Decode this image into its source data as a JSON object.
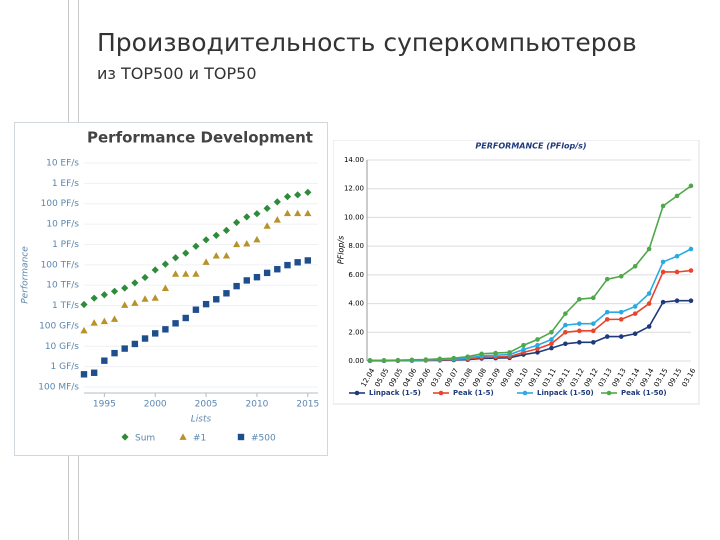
{
  "header": {
    "title": "Производительность суперкомпьютеров",
    "subtitle": "из TOP500 и TOP50"
  },
  "chart_data": [
    {
      "type": "scatter",
      "title": "Performance Development",
      "x_label": "Lists",
      "y_label": "Performance",
      "log_y": true,
      "grid": true,
      "x": [
        1993,
        1994,
        1995,
        1996,
        1997,
        1998,
        1999,
        2000,
        2001,
        2002,
        2003,
        2004,
        2005,
        2006,
        2007,
        2008,
        2009,
        2010,
        2011,
        2012,
        2013,
        2014,
        2015
      ],
      "xlim": [
        1993,
        2016
      ],
      "xticks": [
        1995,
        2000,
        2005,
        2010,
        2015
      ],
      "ylim": [
        100000000,
        10000000000000000000
      ],
      "yticks": [
        {
          "value": 100000000,
          "label": "100 MF/s"
        },
        {
          "value": 1000000000,
          "label": "1 GF/s"
        },
        {
          "value": 10000000000,
          "label": "10 GF/s"
        },
        {
          "value": 100000000000,
          "label": "100 GF/s"
        },
        {
          "value": 1000000000000,
          "label": "1 TF/s"
        },
        {
          "value": 10000000000000,
          "label": "10 TF/s"
        },
        {
          "value": 100000000000000,
          "label": "100 TF/s"
        },
        {
          "value": 1000000000000000,
          "label": "1 PF/s"
        },
        {
          "value": 10000000000000000,
          "label": "10 PF/s"
        },
        {
          "value": 100000000000000000,
          "label": "100 PF/s"
        },
        {
          "value": 1000000000000000000,
          "label": "1 EF/s"
        },
        {
          "value": 10000000000000000000,
          "label": "10 EF/s"
        }
      ],
      "series": [
        {
          "name": "Sum",
          "color": "#2e8b3a",
          "marker": "diamond",
          "values": [
            1130000000000,
            2300000000000,
            3400000000000,
            5000000000000,
            7200000000000,
            13000000000000,
            24000000000000,
            56000000000000,
            108000000000000,
            222000000000000,
            375000000000000,
            813000000000000,
            1690000000000000,
            2790000000000000,
            4900000000000000,
            12000000000000000,
            22600000000000000,
            32400000000000000,
            58900000000000000,
            123000000000000000,
            223000000000000000,
            274000000000000000,
            363000000000000000
          ]
        },
        {
          "name": "#1",
          "color": "#b8922a",
          "marker": "triangle",
          "values": [
            59700000000,
            143000000000,
            170000000000,
            220000000000,
            1070000000000,
            1340000000000,
            2120000000000,
            2380000000000,
            7200000000000,
            35900000000000,
            35900000000000,
            35900000000000,
            137000000000000,
            281000000000000,
            281000000000000,
            1030000000000000,
            1100000000000000,
            1760000000000000,
            8160000000000000,
            16300000000000000,
            33900000000000000,
            33900000000000000,
            33900000000000000
          ]
        },
        {
          "name": "#500",
          "color": "#1f4e8c",
          "marker": "square",
          "values": [
            420000000,
            500000000,
            1960000000,
            4600000000,
            7700000000,
            13000000000,
            24000000000,
            43000000000,
            68000000000,
            134000000000,
            245000000000,
            624000000000,
            1170000000000,
            2030000000000,
            4000000000000,
            9000000000000,
            17100000000000,
            24700000000000,
            40200000000000,
            60800000000000,
            96600000000000,
            133000000000000,
            164000000000000
          ]
        }
      ]
    },
    {
      "type": "line",
      "title": "PERFORMANCE (PFlop/s)",
      "y_label": "PFlop/s",
      "grid": true,
      "categories": [
        "12.04",
        "05.05",
        "09.05",
        "04.06",
        "09.06",
        "03.07",
        "09.07",
        "03.08",
        "09.08",
        "03.09",
        "09.09",
        "03.10",
        "09.10",
        "03.11",
        "09.11",
        "03.12",
        "09.12",
        "03.13",
        "09.13",
        "03.14",
        "09.14",
        "03.15",
        "09.15",
        "03.16"
      ],
      "ylim": [
        0,
        14
      ],
      "yticks": [
        {
          "value": 0,
          "label": "0.00"
        },
        {
          "value": 2,
          "label": "2.00"
        },
        {
          "value": 4,
          "label": "4.00"
        },
        {
          "value": 6,
          "label": "6.00"
        },
        {
          "value": 8,
          "label": "8.00"
        },
        {
          "value": 10,
          "label": "10.00"
        },
        {
          "value": 12,
          "label": "12.00"
        },
        {
          "value": 14,
          "label": "14.00"
        }
      ],
      "series": [
        {
          "name": "Linpack (1-5)",
          "color": "#1f3a7a",
          "values": [
            0.01,
            0.01,
            0.02,
            0.03,
            0.04,
            0.05,
            0.07,
            0.1,
            0.18,
            0.2,
            0.22,
            0.45,
            0.6,
            0.9,
            1.2,
            1.3,
            1.3,
            1.7,
            1.7,
            1.9,
            2.4,
            4.1,
            4.2,
            4.2
          ]
        },
        {
          "name": "Peak (1-5)",
          "color": "#e8452c",
          "values": [
            0.02,
            0.02,
            0.03,
            0.04,
            0.05,
            0.07,
            0.1,
            0.15,
            0.25,
            0.28,
            0.3,
            0.6,
            0.85,
            1.2,
            2.0,
            2.1,
            2.1,
            2.9,
            2.9,
            3.3,
            4.0,
            6.2,
            6.2,
            6.3
          ]
        },
        {
          "name": "Linpack (1-50)",
          "color": "#2aaae2",
          "values": [
            0.03,
            0.03,
            0.04,
            0.05,
            0.07,
            0.1,
            0.13,
            0.2,
            0.35,
            0.4,
            0.45,
            0.8,
            1.1,
            1.5,
            2.5,
            2.6,
            2.6,
            3.4,
            3.4,
            3.8,
            4.7,
            6.9,
            7.3,
            7.8
          ]
        },
        {
          "name": "Peak (1-50)",
          "color": "#4ea84a",
          "values": [
            0.05,
            0.05,
            0.06,
            0.08,
            0.1,
            0.15,
            0.2,
            0.3,
            0.5,
            0.55,
            0.6,
            1.1,
            1.5,
            2.0,
            3.3,
            4.3,
            4.4,
            5.7,
            5.9,
            6.6,
            7.8,
            10.8,
            11.5,
            12.2
          ]
        }
      ]
    }
  ]
}
